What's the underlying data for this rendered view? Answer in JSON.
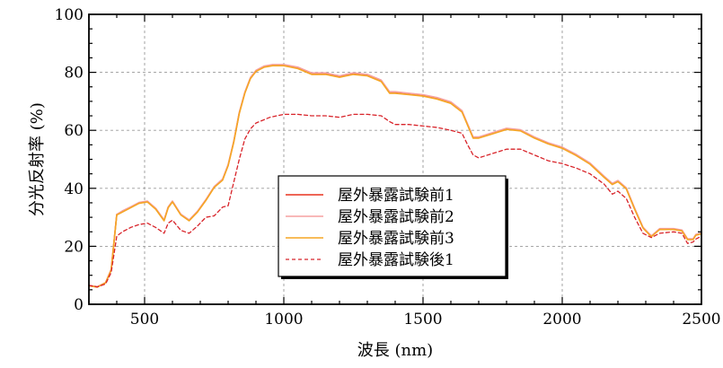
{
  "chart_data": {
    "type": "line",
    "title": "",
    "xlabel": "波長 (nm)",
    "ylabel": "分光反射率 (%)",
    "xlim": [
      300,
      2500
    ],
    "ylim": [
      0,
      100
    ],
    "x_ticks": [
      500,
      1000,
      1500,
      2000,
      2500
    ],
    "y_ticks": [
      0,
      20,
      40,
      60,
      80,
      100
    ],
    "grid": true,
    "legend_position": "center-bottom",
    "series": [
      {
        "name": "屋外暴露試験前1",
        "color": "#e8321e",
        "style": "solid",
        "x": [
          300,
          330,
          360,
          380,
          400,
          420,
          450,
          480,
          510,
          540,
          570,
          585,
          600,
          630,
          660,
          690,
          720,
          750,
          780,
          800,
          820,
          840,
          860,
          880,
          900,
          930,
          960,
          1000,
          1050,
          1100,
          1150,
          1200,
          1250,
          1300,
          1350,
          1380,
          1400,
          1450,
          1500,
          1550,
          1600,
          1640,
          1660,
          1680,
          1700,
          1750,
          1800,
          1850,
          1900,
          1950,
          2000,
          2050,
          2100,
          2150,
          2180,
          2200,
          2230,
          2260,
          2290,
          2320,
          2350,
          2400,
          2430,
          2450,
          2470,
          2480,
          2500
        ],
        "values": [
          6.5,
          6.0,
          7.5,
          12.0,
          31.0,
          32.0,
          33.5,
          35.0,
          35.5,
          33.0,
          29.0,
          33.5,
          35.5,
          31.0,
          29.0,
          32.0,
          36.0,
          40.5,
          43.0,
          48.0,
          56.0,
          66.0,
          73.0,
          78.0,
          80.5,
          82.0,
          82.5,
          82.5,
          81.5,
          79.5,
          79.5,
          78.5,
          79.5,
          79.0,
          77.0,
          73.0,
          73.0,
          72.5,
          72.0,
          71.0,
          69.5,
          66.5,
          62.0,
          57.5,
          57.5,
          59.0,
          60.5,
          60.0,
          57.5,
          55.5,
          54.0,
          51.5,
          48.5,
          44.0,
          41.5,
          42.5,
          40.0,
          33.0,
          26.5,
          23.5,
          26.0,
          26.0,
          25.5,
          22.5,
          22.5,
          24.0,
          24.5
        ]
      },
      {
        "name": "屋外暴露試験前2",
        "color": "#f5a0a0",
        "style": "solid",
        "x": [
          300,
          330,
          360,
          380,
          400,
          420,
          450,
          480,
          510,
          540,
          570,
          585,
          600,
          630,
          660,
          690,
          720,
          750,
          780,
          800,
          820,
          840,
          860,
          880,
          900,
          930,
          960,
          1000,
          1050,
          1100,
          1150,
          1200,
          1250,
          1300,
          1350,
          1380,
          1400,
          1450,
          1500,
          1550,
          1600,
          1640,
          1660,
          1680,
          1700,
          1750,
          1800,
          1850,
          1900,
          1950,
          2000,
          2050,
          2100,
          2150,
          2180,
          2200,
          2230,
          2260,
          2290,
          2320,
          2350,
          2400,
          2430,
          2450,
          2470,
          2480,
          2500
        ],
        "values": [
          6.5,
          6.0,
          7.5,
          12.0,
          31.0,
          32.2,
          33.6,
          35.1,
          35.6,
          33.1,
          29.1,
          33.6,
          35.6,
          31.1,
          29.1,
          32.1,
          36.1,
          40.6,
          43.2,
          48.2,
          56.2,
          66.2,
          73.2,
          78.2,
          80.7,
          82.2,
          82.7,
          82.7,
          81.8,
          79.8,
          79.8,
          78.8,
          79.8,
          79.3,
          77.3,
          73.3,
          73.3,
          72.8,
          72.3,
          71.3,
          69.8,
          66.8,
          62.2,
          57.7,
          57.7,
          59.2,
          60.7,
          60.2,
          57.7,
          55.7,
          54.2,
          51.7,
          48.7,
          44.2,
          41.7,
          42.7,
          40.2,
          33.2,
          26.6,
          23.6,
          26.1,
          26.1,
          25.6,
          22.6,
          22.6,
          24.1,
          24.6
        ]
      },
      {
        "name": "屋外暴露試験前3",
        "color": "#f5a623",
        "style": "solid",
        "x": [
          300,
          330,
          360,
          380,
          400,
          420,
          450,
          480,
          510,
          540,
          570,
          585,
          600,
          630,
          660,
          690,
          720,
          750,
          780,
          800,
          820,
          840,
          860,
          880,
          900,
          930,
          960,
          1000,
          1050,
          1100,
          1150,
          1200,
          1250,
          1300,
          1350,
          1380,
          1400,
          1450,
          1500,
          1550,
          1600,
          1640,
          1660,
          1680,
          1700,
          1750,
          1800,
          1850,
          1900,
          1950,
          2000,
          2050,
          2100,
          2150,
          2180,
          2200,
          2230,
          2260,
          2290,
          2320,
          2350,
          2400,
          2430,
          2450,
          2470,
          2480,
          2500
        ],
        "values": [
          6.4,
          5.9,
          7.4,
          11.8,
          30.8,
          31.8,
          33.3,
          34.8,
          35.3,
          32.8,
          28.8,
          33.3,
          35.3,
          30.8,
          28.8,
          31.8,
          35.8,
          40.3,
          42.8,
          47.8,
          55.8,
          65.8,
          72.8,
          77.8,
          80.3,
          81.8,
          82.3,
          82.3,
          81.3,
          79.3,
          79.3,
          78.3,
          79.3,
          78.8,
          76.8,
          72.8,
          72.8,
          72.3,
          71.8,
          70.8,
          69.3,
          66.3,
          61.8,
          57.3,
          57.3,
          58.8,
          60.3,
          59.8,
          57.3,
          55.3,
          53.8,
          51.3,
          48.3,
          43.8,
          41.3,
          42.3,
          39.8,
          32.8,
          26.3,
          23.3,
          25.8,
          25.8,
          25.3,
          22.3,
          22.3,
          23.8,
          24.3
        ]
      },
      {
        "name": "屋外暴露試験後1",
        "color": "#d8242a",
        "style": "dashed",
        "x": [
          300,
          330,
          360,
          380,
          400,
          420,
          450,
          480,
          510,
          540,
          570,
          585,
          600,
          630,
          660,
          690,
          720,
          750,
          780,
          800,
          820,
          840,
          860,
          880,
          900,
          950,
          1000,
          1050,
          1100,
          1150,
          1200,
          1250,
          1300,
          1350,
          1380,
          1400,
          1450,
          1500,
          1550,
          1600,
          1640,
          1660,
          1680,
          1700,
          1750,
          1800,
          1850,
          1900,
          1950,
          2000,
          2050,
          2100,
          2150,
          2180,
          2200,
          2230,
          2260,
          2290,
          2320,
          2350,
          2400,
          2430,
          2450,
          2470,
          2480,
          2500
        ],
        "values": [
          6.5,
          6.0,
          7.0,
          11.0,
          23.5,
          25.0,
          26.5,
          27.5,
          28.0,
          26.5,
          24.5,
          28.0,
          29.0,
          25.5,
          24.5,
          27.0,
          30.0,
          30.5,
          33.5,
          34.0,
          42.0,
          50.0,
          57.0,
          60.5,
          62.5,
          64.5,
          65.5,
          65.5,
          65.0,
          65.0,
          64.5,
          65.5,
          65.5,
          65.0,
          63.0,
          62.0,
          62.0,
          61.5,
          61.0,
          60.0,
          59.0,
          55.0,
          51.5,
          50.5,
          52.0,
          53.5,
          53.5,
          51.5,
          49.5,
          48.5,
          47.0,
          45.0,
          41.5,
          38.0,
          39.0,
          36.5,
          30.0,
          24.5,
          23.0,
          24.5,
          25.0,
          24.5,
          21.0,
          21.5,
          22.5,
          23.5
        ]
      }
    ]
  }
}
